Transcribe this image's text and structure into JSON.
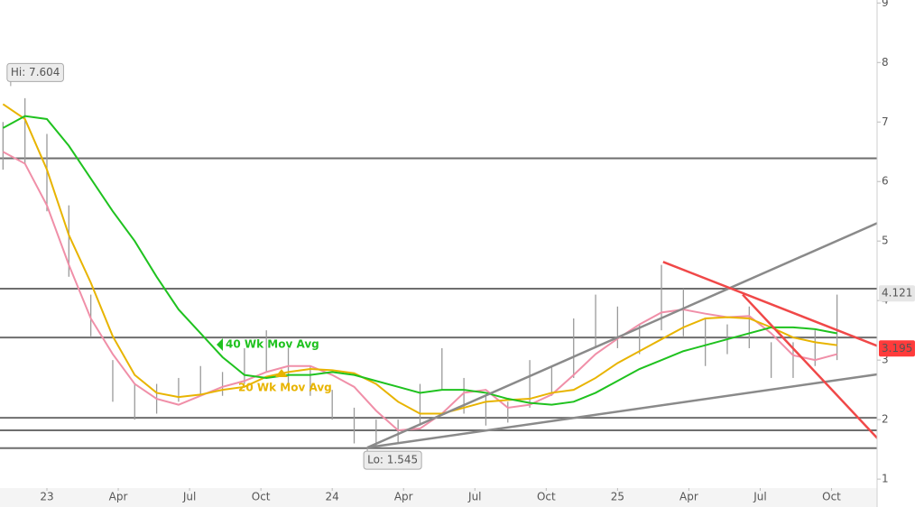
{
  "chart_data": {
    "type": "ohlc",
    "xlim": [
      -8.55,
      151.3
    ],
    "ylim": [
      0.85,
      9.05
    ],
    "yticks": [
      1,
      2,
      3,
      4,
      5,
      6,
      7,
      8,
      9
    ],
    "xticks": [
      {
        "value": 0,
        "label": "23"
      },
      {
        "value": 13,
        "label": "Apr"
      },
      {
        "value": 26,
        "label": "Jul"
      },
      {
        "value": 39,
        "label": "Oct"
      },
      {
        "value": 52,
        "label": "24"
      },
      {
        "value": 65,
        "label": "Apr"
      },
      {
        "value": 78,
        "label": "Jul"
      },
      {
        "value": 91,
        "label": "Oct"
      },
      {
        "value": 104,
        "label": "25"
      },
      {
        "value": 117,
        "label": "Apr"
      },
      {
        "value": 130,
        "label": "Jul"
      },
      {
        "value": 143,
        "label": "Oct"
      }
    ],
    "x": [
      -8,
      -4,
      0,
      4,
      8,
      12,
      16,
      20,
      24,
      28,
      32,
      36,
      40,
      44,
      48,
      52,
      56,
      60,
      64,
      68,
      72,
      76,
      80,
      84,
      88,
      92,
      96,
      100,
      104,
      108,
      112,
      116,
      120,
      124,
      128,
      132,
      136,
      140,
      144
    ],
    "bars": {
      "color": "#9a9a9a",
      "high": [
        7.0,
        7.4,
        6.8,
        5.6,
        4.1,
        3.0,
        2.6,
        2.6,
        2.7,
        2.9,
        2.8,
        3.2,
        3.5,
        3.2,
        2.9,
        2.5,
        2.2,
        2.0,
        2.0,
        2.6,
        3.2,
        2.7,
        2.4,
        2.3,
        3.0,
        2.9,
        3.7,
        4.1,
        3.9,
        3.6,
        4.6,
        4.2,
        3.7,
        3.6,
        3.9,
        3.3,
        3.3,
        3.5,
        4.1
      ],
      "low": [
        6.2,
        6.3,
        5.5,
        4.4,
        3.4,
        2.3,
        2.0,
        2.1,
        2.3,
        2.4,
        2.4,
        2.6,
        2.8,
        2.6,
        2.4,
        2.0,
        1.6,
        1.55,
        1.6,
        1.9,
        2.5,
        2.1,
        1.9,
        1.95,
        2.2,
        2.4,
        2.7,
        3.2,
        3.2,
        3.1,
        3.5,
        3.4,
        2.9,
        3.1,
        3.2,
        2.7,
        2.7,
        2.9,
        3.0
      ]
    },
    "series": [
      {
        "color": "#f08fa8",
        "values": [
          6.5,
          6.3,
          5.6,
          4.6,
          3.7,
          3.1,
          2.6,
          2.35,
          2.25,
          2.4,
          2.55,
          2.65,
          2.8,
          2.9,
          2.9,
          2.75,
          2.55,
          2.15,
          1.82,
          1.85,
          2.1,
          2.45,
          2.5,
          2.2,
          2.25,
          2.42,
          2.75,
          3.1,
          3.36,
          3.6,
          3.8,
          3.85,
          3.78,
          3.72,
          3.74,
          3.45,
          3.08,
          3.0,
          3.1
        ]
      },
      {
        "name": "20 Wk Mov Avg",
        "color": "#e8b400",
        "values": [
          7.3,
          7.05,
          6.2,
          5.1,
          4.3,
          3.4,
          2.75,
          2.45,
          2.38,
          2.42,
          2.5,
          2.55,
          2.72,
          2.8,
          2.85,
          2.83,
          2.78,
          2.6,
          2.3,
          2.1,
          2.1,
          2.2,
          2.3,
          2.33,
          2.35,
          2.45,
          2.5,
          2.7,
          2.95,
          3.15,
          3.35,
          3.55,
          3.7,
          3.72,
          3.7,
          3.55,
          3.38,
          3.3,
          3.25
        ]
      },
      {
        "name": "40 Wk Mov Avg",
        "color": "#1fc21f",
        "values": [
          6.9,
          7.1,
          7.05,
          6.6,
          6.05,
          5.5,
          5.0,
          4.4,
          3.85,
          3.45,
          3.05,
          2.75,
          2.7,
          2.75,
          2.75,
          2.8,
          2.75,
          2.65,
          2.55,
          2.45,
          2.5,
          2.5,
          2.45,
          2.35,
          2.28,
          2.25,
          2.3,
          2.45,
          2.65,
          2.85,
          3.0,
          3.15,
          3.25,
          3.35,
          3.45,
          3.55,
          3.55,
          3.52,
          3.45
        ]
      }
    ],
    "hlines": [
      6.39,
      4.2,
      3.38,
      2.03,
      1.82,
      1.52
    ],
    "hline_color": "#6e6e6e",
    "trendlines": [
      {
        "x": [
          58.4,
          151.3
        ],
        "y": [
          1.53,
          5.3
        ],
        "color": "#8a8a8a"
      },
      {
        "x": [
          58.4,
          151.3
        ],
        "y": [
          1.53,
          2.76
        ],
        "color": "#8a8a8a"
      },
      {
        "x": [
          112.3,
          151.3
        ],
        "y": [
          4.65,
          3.24
        ],
        "color": "#f04848"
      },
      {
        "x": [
          126.8,
          155.9
        ],
        "y": [
          4.1,
          1.24
        ],
        "color": "#f04848"
      }
    ],
    "price_labels": [
      {
        "value": 4.121,
        "color": "#e6e6e6",
        "text_color": "#333333"
      },
      {
        "value": 3.195,
        "color": "#ff3b3b",
        "text_color": "#ffffff"
      }
    ],
    "annotations": [
      {
        "text": "Hi: 7.604",
        "x": -6.6,
        "y": 7.604,
        "side": "above"
      },
      {
        "text": "Lo: 1.545",
        "x": 58.4,
        "y": 1.545,
        "side": "below"
      }
    ]
  }
}
